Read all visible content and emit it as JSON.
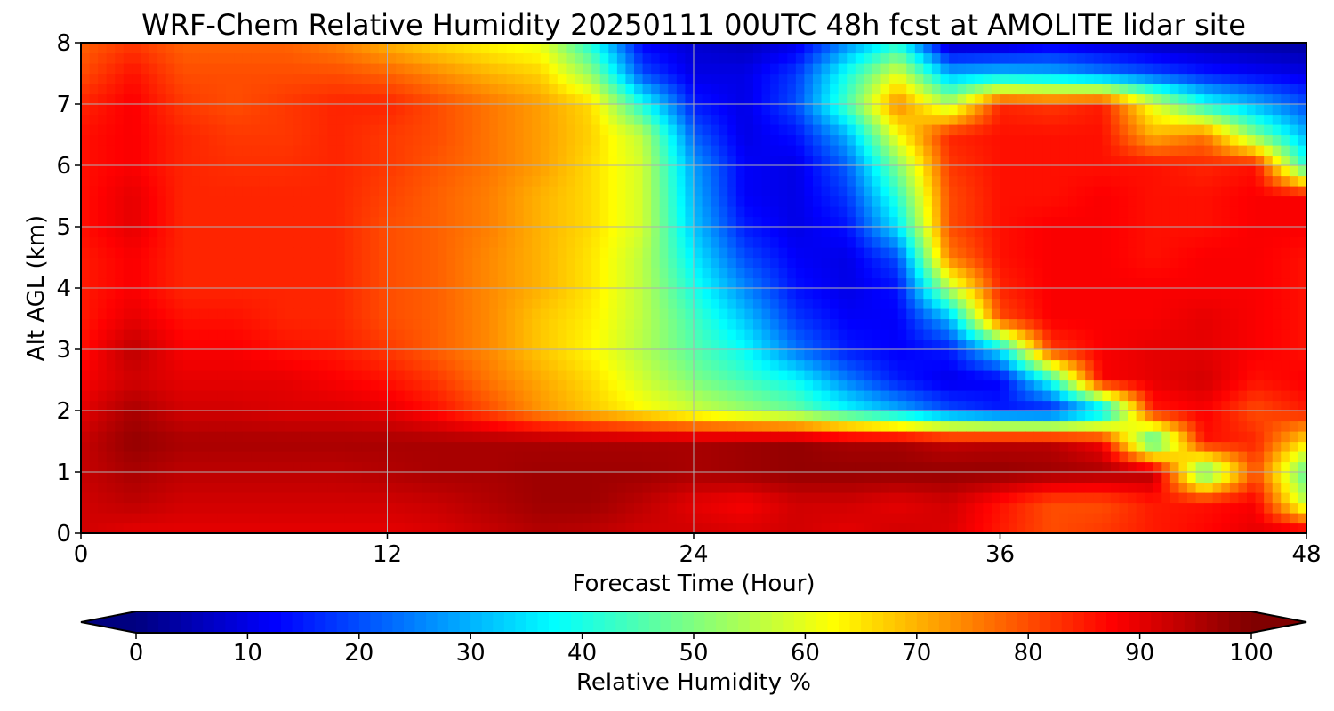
{
  "chart_data": {
    "type": "heatmap",
    "title": "WRF-Chem Relative Humidity 20250111 00UTC 48h fcst at AMOLITE lidar site",
    "xlabel": "Forecast Time (Hour)",
    "ylabel": "Alt AGL (km)",
    "xlim": [
      0,
      48
    ],
    "ylim": [
      0,
      8
    ],
    "xticks": [
      0,
      12,
      24,
      36,
      48
    ],
    "yticks": [
      0,
      1,
      2,
      3,
      4,
      5,
      6,
      7,
      8
    ],
    "grid": true,
    "colormap": "jet",
    "colorbar": {
      "label": "Relative Humidity %",
      "ticks": [
        0,
        10,
        20,
        30,
        40,
        50,
        60,
        70,
        80,
        90,
        100
      ],
      "extend": "both",
      "orientation": "horizontal",
      "placement": "bottom"
    },
    "x": [
      0,
      2,
      4,
      6,
      8,
      10,
      12,
      14,
      16,
      18,
      20,
      22,
      24,
      26,
      28,
      30,
      32,
      34,
      36,
      38,
      40,
      42,
      44,
      46,
      48
    ],
    "y": [
      0,
      0.5,
      1,
      1.5,
      2,
      2.5,
      3,
      3.5,
      4,
      4.5,
      5,
      5.5,
      6,
      6.5,
      7,
      7.5,
      8
    ],
    "z": [
      [
        92,
        90,
        90,
        90,
        90,
        90,
        90,
        91,
        93,
        95,
        94,
        92,
        92,
        91,
        92,
        90,
        92,
        91,
        85,
        80,
        82,
        85,
        87,
        90,
        92
      ],
      [
        92,
        94,
        92,
        92,
        92,
        92,
        92,
        93,
        95,
        97,
        97,
        94,
        90,
        88,
        92,
        92,
        90,
        92,
        86,
        80,
        80,
        85,
        86,
        88,
        55
      ],
      [
        93,
        96,
        94,
        94,
        94,
        94,
        95,
        96,
        96,
        97,
        97,
        97,
        96,
        97,
        98,
        98,
        98,
        98,
        98,
        97,
        96,
        95,
        45,
        80,
        45
      ],
      [
        93,
        98,
        96,
        96,
        96,
        96,
        96,
        96,
        96,
        96,
        96,
        96,
        96,
        97,
        98,
        96,
        96,
        93,
        94,
        94,
        88,
        40,
        86,
        84,
        65
      ],
      [
        90,
        96,
        92,
        92,
        91,
        91,
        90,
        86,
        80,
        73,
        68,
        63,
        58,
        53,
        48,
        38,
        30,
        20,
        15,
        14,
        30,
        85,
        88,
        80,
        85
      ],
      [
        88,
        92,
        90,
        90,
        90,
        88,
        86,
        82,
        76,
        71,
        66,
        58,
        50,
        44,
        38,
        25,
        15,
        10,
        12,
        40,
        88,
        90,
        92,
        86,
        88
      ],
      [
        86,
        94,
        88,
        88,
        86,
        85,
        82,
        78,
        74,
        68,
        63,
        55,
        46,
        38,
        24,
        15,
        12,
        15,
        35,
        82,
        88,
        90,
        90,
        88,
        86
      ],
      [
        85,
        90,
        86,
        86,
        84,
        84,
        80,
        78,
        74,
        68,
        64,
        56,
        44,
        32,
        18,
        12,
        12,
        30,
        80,
        88,
        88,
        88,
        90,
        88,
        86
      ],
      [
        85,
        88,
        84,
        84,
        84,
        84,
        80,
        78,
        74,
        70,
        65,
        56,
        40,
        26,
        14,
        10,
        14,
        55,
        84,
        88,
        88,
        88,
        88,
        88,
        86
      ],
      [
        85,
        88,
        84,
        84,
        84,
        84,
        80,
        78,
        74,
        70,
        65,
        56,
        36,
        20,
        12,
        10,
        20,
        75,
        86,
        88,
        88,
        86,
        88,
        88,
        86
      ],
      [
        86,
        90,
        84,
        84,
        84,
        84,
        80,
        78,
        75,
        70,
        66,
        58,
        32,
        15,
        10,
        14,
        35,
        80,
        86,
        88,
        88,
        86,
        86,
        88,
        88
      ],
      [
        86,
        90,
        84,
        84,
        84,
        84,
        81,
        78,
        75,
        70,
        66,
        58,
        30,
        12,
        10,
        18,
        42,
        80,
        86,
        86,
        88,
        86,
        86,
        88,
        88
      ],
      [
        86,
        88,
        84,
        83,
        83,
        84,
        82,
        79,
        76,
        72,
        66,
        58,
        28,
        12,
        10,
        22,
        50,
        82,
        86,
        86,
        86,
        86,
        84,
        86,
        40
      ],
      [
        86,
        88,
        84,
        82,
        82,
        84,
        82,
        80,
        76,
        72,
        67,
        56,
        22,
        10,
        14,
        30,
        62,
        84,
        86,
        86,
        86,
        70,
        76,
        50,
        30
      ],
      [
        84,
        88,
        82,
        80,
        82,
        84,
        84,
        80,
        76,
        72,
        66,
        40,
        15,
        10,
        20,
        45,
        75,
        55,
        84,
        82,
        85,
        60,
        40,
        30,
        20
      ],
      [
        80,
        86,
        80,
        80,
        80,
        80,
        78,
        74,
        70,
        67,
        52,
        20,
        10,
        10,
        18,
        40,
        60,
        30,
        32,
        30,
        25,
        20,
        15,
        12,
        10
      ],
      [
        78,
        82,
        78,
        78,
        78,
        75,
        70,
        66,
        63,
        60,
        40,
        12,
        8,
        6,
        10,
        26,
        40,
        5,
        6,
        10,
        8,
        6,
        5,
        4,
        3
      ]
    ]
  }
}
